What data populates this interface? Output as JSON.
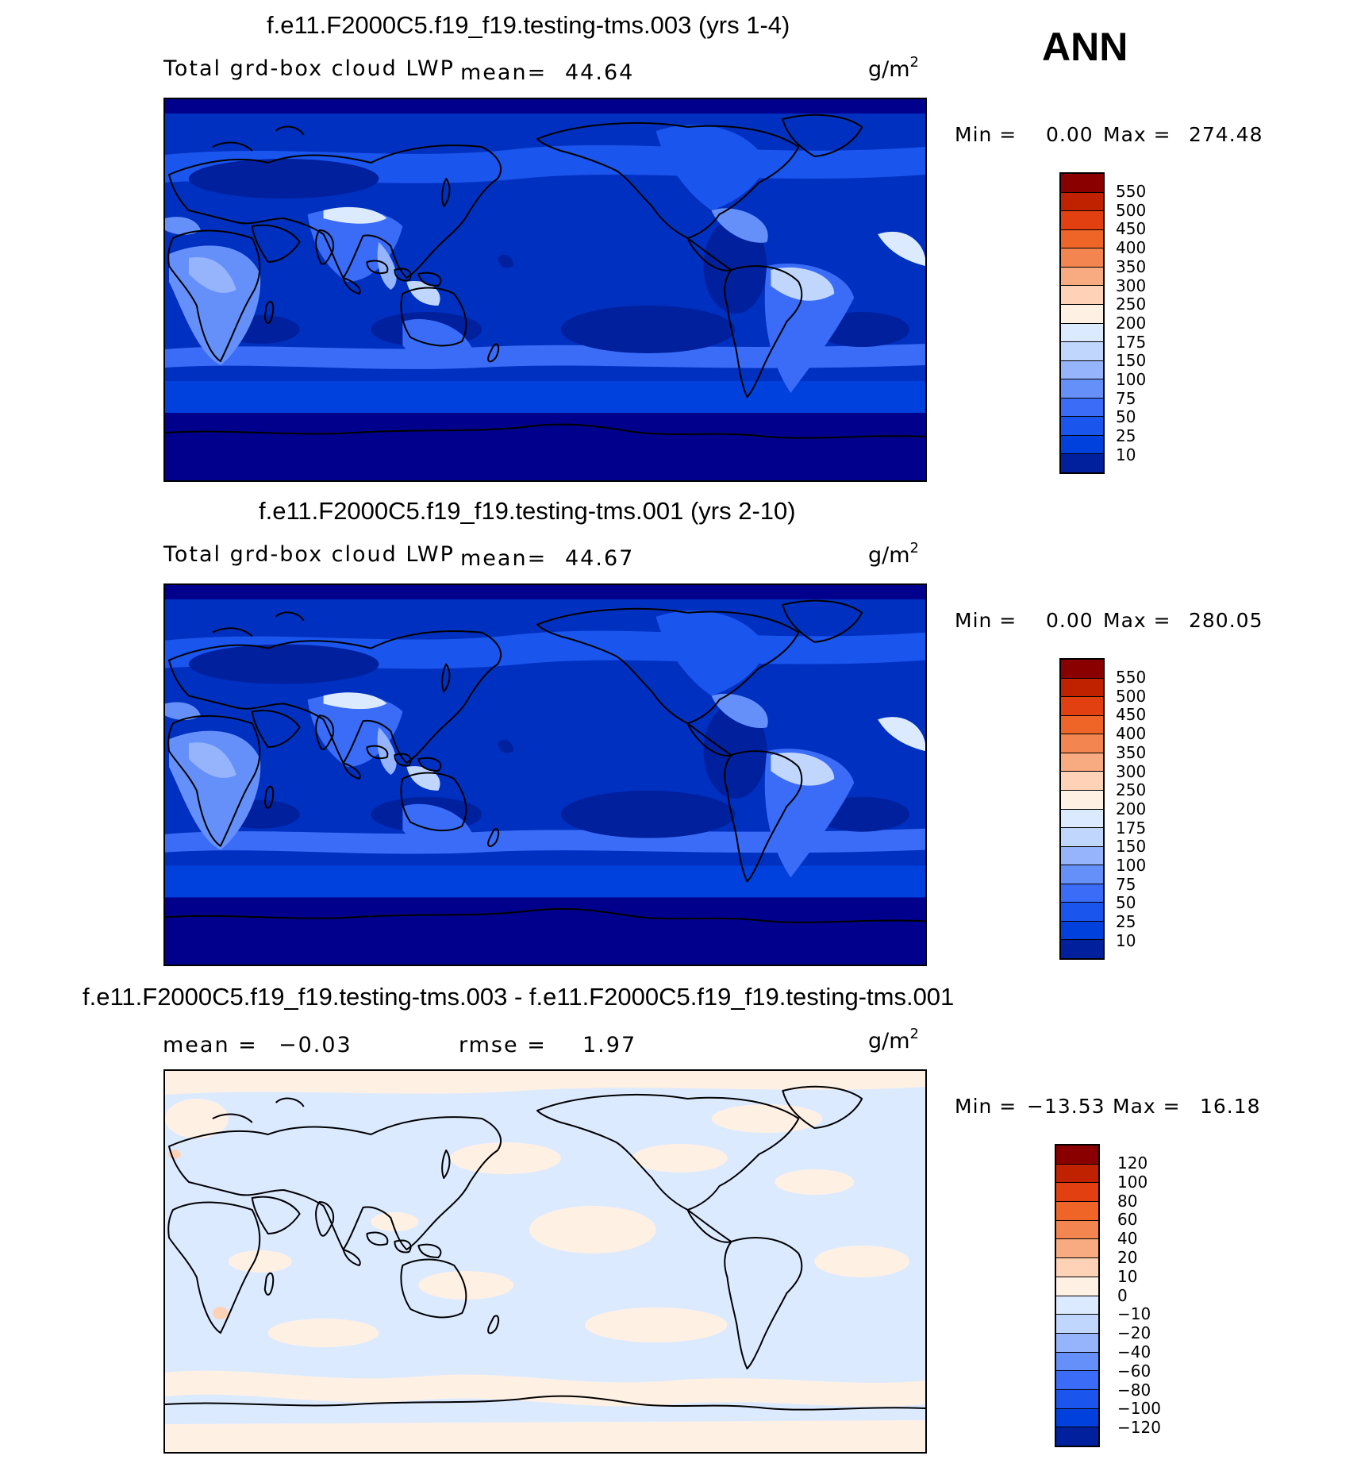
{
  "season": "ANN",
  "colors": {
    "lwp_levels": [
      "#00008c",
      "#00209e",
      "#0030c0",
      "#0040dc",
      "#1a55ee",
      "#3a6cf8",
      "#6590fa",
      "#96b4fc",
      "#c0d6fd",
      "#dceaff",
      "#fff0e4",
      "#fdd2b6",
      "#f8aa80",
      "#f38650",
      "#ef6528",
      "#e24010",
      "#c02200",
      "#8a0000"
    ],
    "diff_levels": [
      "#00008c",
      "#00209e",
      "#0030c0",
      "#0040dc",
      "#1a55ee",
      "#3a6cf8",
      "#6590fa",
      "#96b4fc",
      "#c0d6fd",
      "#dceaff",
      "#fff0e4",
      "#fdd2b6",
      "#f8aa80",
      "#f38650",
      "#ef6528",
      "#e24010",
      "#c02200",
      "#8a0000"
    ]
  },
  "panels": [
    {
      "title": "f.e11.F2000C5.f19_f19.testing-tms.003 (yrs 1-4)",
      "left_label": "Total grd-box cloud LWP",
      "mean_label": "mean=",
      "mean_value": "44.64",
      "unit_base": "g/m",
      "unit_sup": "2",
      "min_label": "Min =",
      "min_value": "0.00",
      "max_label": "Max =",
      "max_value": "274.48",
      "levels": [
        "550",
        "500",
        "450",
        "400",
        "350",
        "300",
        "250",
        "200",
        "175",
        "150",
        "100",
        "75",
        "50",
        "25",
        "10"
      ]
    },
    {
      "title": "f.e11.F2000C5.f19_f19.testing-tms.001 (yrs 2-10)",
      "left_label": "Total grd-box cloud LWP",
      "mean_label": "mean=",
      "mean_value": "44.67",
      "unit_base": "g/m",
      "unit_sup": "2",
      "min_label": "Min =",
      "min_value": "0.00",
      "max_label": "Max =",
      "max_value": "280.05",
      "levels": [
        "550",
        "500",
        "450",
        "400",
        "350",
        "300",
        "250",
        "200",
        "175",
        "150",
        "100",
        "75",
        "50",
        "25",
        "10"
      ]
    },
    {
      "title": "f.e11.F2000C5.f19_f19.testing-tms.003 - f.e11.F2000C5.f19_f19.testing-tms.001",
      "mean_label": "mean =",
      "mean_value": "−0.03",
      "rmse_label": "rmse =",
      "rmse_value": "1.97",
      "unit_base": "g/m",
      "unit_sup": "2",
      "min_label": "Min =",
      "min_value": "−13.53",
      "max_label": "Max =",
      "max_value": "16.18",
      "levels": [
        "120",
        "100",
        "80",
        "60",
        "40",
        "20",
        "10",
        "0",
        "−10",
        "−20",
        "−40",
        "−60",
        "−80",
        "−100",
        "−120"
      ]
    }
  ]
}
